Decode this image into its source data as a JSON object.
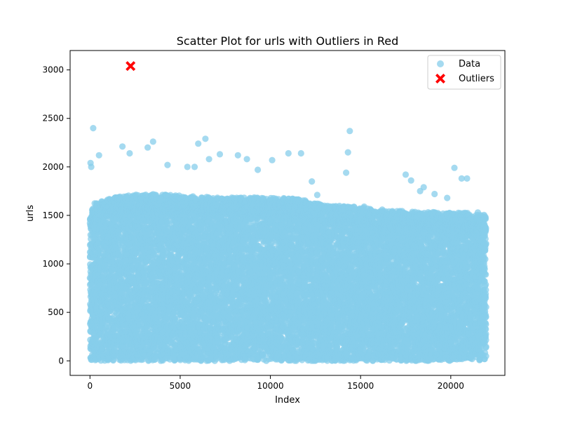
{
  "chart_data": {
    "type": "scatter",
    "title": "Scatter Plot for urls with Outliers in Red",
    "xlabel": "Index",
    "ylabel": "urls",
    "xlim": [
      -1100,
      23000
    ],
    "ylim": [
      -150,
      3200
    ],
    "xticks": [
      0,
      5000,
      10000,
      15000,
      20000
    ],
    "yticks": [
      0,
      500,
      1000,
      1500,
      2000,
      2500,
      3000
    ],
    "grid": false,
    "legend_position": "top-right",
    "series": [
      {
        "name": "Data",
        "color": "#87ceeb",
        "marker": "circle",
        "n_points": 21960,
        "profile": [
          [
            0,
            1350
          ],
          [
            200,
            1500
          ],
          [
            1000,
            1550
          ],
          [
            3000,
            1600
          ],
          [
            5000,
            1580
          ],
          [
            7000,
            1560
          ],
          [
            9000,
            1560
          ],
          [
            11000,
            1550
          ],
          [
            12000,
            1530
          ],
          [
            13000,
            1480
          ],
          [
            15000,
            1460
          ],
          [
            16000,
            1420
          ],
          [
            17000,
            1420
          ],
          [
            19000,
            1410
          ],
          [
            21000,
            1400
          ],
          [
            21960,
            1380
          ]
        ],
        "highlights": [
          {
            "x": 30,
            "y": 2040
          },
          {
            "x": 70,
            "y": 2000
          },
          {
            "x": 180,
            "y": 2400
          },
          {
            "x": 500,
            "y": 2120
          },
          {
            "x": 1800,
            "y": 2210
          },
          {
            "x": 2200,
            "y": 2140
          },
          {
            "x": 3200,
            "y": 2200
          },
          {
            "x": 3500,
            "y": 2260
          },
          {
            "x": 4300,
            "y": 2020
          },
          {
            "x": 5400,
            "y": 2000
          },
          {
            "x": 5800,
            "y": 2000
          },
          {
            "x": 6000,
            "y": 2240
          },
          {
            "x": 6400,
            "y": 2290
          },
          {
            "x": 6600,
            "y": 2080
          },
          {
            "x": 7200,
            "y": 2130
          },
          {
            "x": 8200,
            "y": 2120
          },
          {
            "x": 8700,
            "y": 2080
          },
          {
            "x": 9300,
            "y": 1970
          },
          {
            "x": 10100,
            "y": 2070
          },
          {
            "x": 11000,
            "y": 2140
          },
          {
            "x": 11700,
            "y": 2140
          },
          {
            "x": 12300,
            "y": 1850
          },
          {
            "x": 12600,
            "y": 1710
          },
          {
            "x": 14200,
            "y": 1940
          },
          {
            "x": 14300,
            "y": 2150
          },
          {
            "x": 14400,
            "y": 2370
          },
          {
            "x": 15200,
            "y": 1590
          },
          {
            "x": 16200,
            "y": 1560
          },
          {
            "x": 17500,
            "y": 1920
          },
          {
            "x": 17800,
            "y": 1860
          },
          {
            "x": 18300,
            "y": 1750
          },
          {
            "x": 18500,
            "y": 1790
          },
          {
            "x": 19100,
            "y": 1720
          },
          {
            "x": 19800,
            "y": 1680
          },
          {
            "x": 20200,
            "y": 1990
          },
          {
            "x": 20600,
            "y": 1880
          },
          {
            "x": 20900,
            "y": 1880
          },
          {
            "x": 21500,
            "y": 1530
          }
        ]
      },
      {
        "name": "Outliers",
        "color": "#ff0000",
        "marker": "X",
        "points": [
          {
            "x": 2250,
            "y": 3040
          }
        ]
      }
    ]
  }
}
